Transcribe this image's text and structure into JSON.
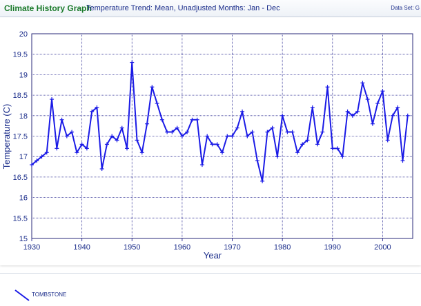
{
  "header": {
    "app_title": "Climate History Graph",
    "subtitle": "Temperature Trend: Mean, Unadjusted Months: Jan - Dec",
    "dataset": "Data Set: G"
  },
  "legend": {
    "label": "TOMBSTONE"
  },
  "colors": {
    "series": "#1a1ae6",
    "grid": "#3a3a9a",
    "title_green": "#1a7a2a",
    "text_navy": "#1a2c8a"
  },
  "chart_data": {
    "type": "line",
    "title": "",
    "xlabel": "Year",
    "ylabel": "Temperature (C)",
    "xlim": [
      1930,
      2006
    ],
    "ylim": [
      15,
      20
    ],
    "xticks": [
      1930,
      1940,
      1950,
      1960,
      1970,
      1980,
      1990,
      2000
    ],
    "yticks": [
      15,
      15.5,
      16,
      16.5,
      17,
      17.5,
      18,
      18.5,
      19,
      19.5,
      20
    ],
    "ytick_labels": [
      "15",
      "15.5",
      "16",
      "16.5",
      "17",
      "17.5",
      "18",
      "18.5",
      "19",
      "19.5",
      "20"
    ],
    "grid": true,
    "legend_position": "bottom-left",
    "series": [
      {
        "name": "TOMBSTONE",
        "x": [
          1930,
          1931,
          1932,
          1933,
          1934,
          1935,
          1936,
          1937,
          1938,
          1939,
          1940,
          1941,
          1942,
          1943,
          1944,
          1945,
          1946,
          1947,
          1948,
          1949,
          1950,
          1951,
          1952,
          1953,
          1954,
          1955,
          1956,
          1957,
          1958,
          1959,
          1960,
          1961,
          1962,
          1963,
          1964,
          1965,
          1966,
          1967,
          1968,
          1969,
          1970,
          1971,
          1972,
          1973,
          1974,
          1975,
          1976,
          1977,
          1978,
          1979,
          1980,
          1981,
          1982,
          1983,
          1984,
          1985,
          1986,
          1987,
          1988,
          1989,
          1990,
          1991,
          1992,
          1993,
          1994,
          1995,
          1996,
          1997,
          1998,
          1999,
          2000,
          2001,
          2002,
          2003,
          2004,
          2005
        ],
        "y": [
          16.8,
          16.9,
          17.0,
          17.1,
          18.4,
          17.2,
          17.9,
          17.5,
          17.6,
          17.1,
          17.3,
          17.2,
          18.1,
          18.2,
          16.7,
          17.3,
          17.5,
          17.4,
          17.7,
          17.2,
          19.3,
          17.4,
          17.1,
          17.8,
          18.7,
          18.3,
          17.9,
          17.6,
          17.6,
          17.7,
          17.5,
          17.6,
          17.9,
          17.9,
          16.8,
          17.5,
          17.3,
          17.3,
          17.1,
          17.5,
          17.5,
          17.7,
          18.1,
          17.5,
          17.6,
          16.9,
          16.4,
          17.6,
          17.7,
          17.0,
          18.0,
          17.6,
          17.6,
          17.1,
          17.3,
          17.4,
          18.2,
          17.3,
          17.6,
          18.7,
          17.2,
          17.2,
          17.0,
          18.1,
          18.0,
          18.1,
          18.8,
          18.4,
          17.8,
          18.3,
          18.6,
          17.4,
          18.0,
          18.2,
          16.9,
          18.0
        ]
      }
    ]
  }
}
